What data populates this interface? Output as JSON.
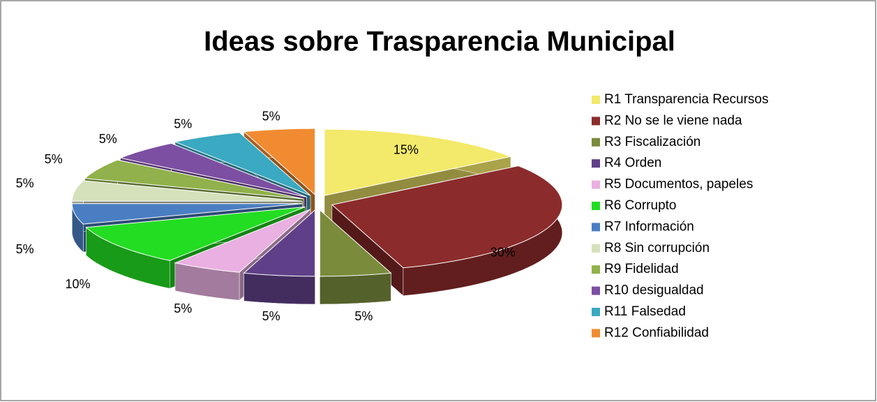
{
  "chart_data": {
    "type": "pie",
    "title": "Ideas sobre Trasparencia Municipal",
    "categories": [
      "R1 Transparencia Recursos",
      "R2 No se le viene nada",
      "R3 Fiscalización",
      "R4  Orden",
      "R5 Documentos, papeles",
      "R6 Corrupto",
      "R7 Información",
      "R8 Sin corrupción",
      "R9 Fidelidad",
      "R10 desigualdad",
      "R11 Falsedad",
      "R12 Confiabilidad"
    ],
    "values": [
      15,
      30,
      5,
      5,
      5,
      10,
      5,
      5,
      5,
      5,
      5,
      5
    ],
    "value_labels": [
      "15%",
      "30%",
      "5%",
      "5%",
      "5%",
      "10%",
      "5%",
      "5%",
      "5%",
      "5%",
      "5%",
      "5%"
    ],
    "colors": [
      "#f3e96a",
      "#8c2b2b",
      "#7a8b3c",
      "#5f4088",
      "#e9b0e1",
      "#22dd22",
      "#4a7ec2",
      "#d5e1bb",
      "#90b14b",
      "#7c4fa2",
      "#3aa9c1",
      "#f18b31"
    ],
    "legend": "right"
  }
}
